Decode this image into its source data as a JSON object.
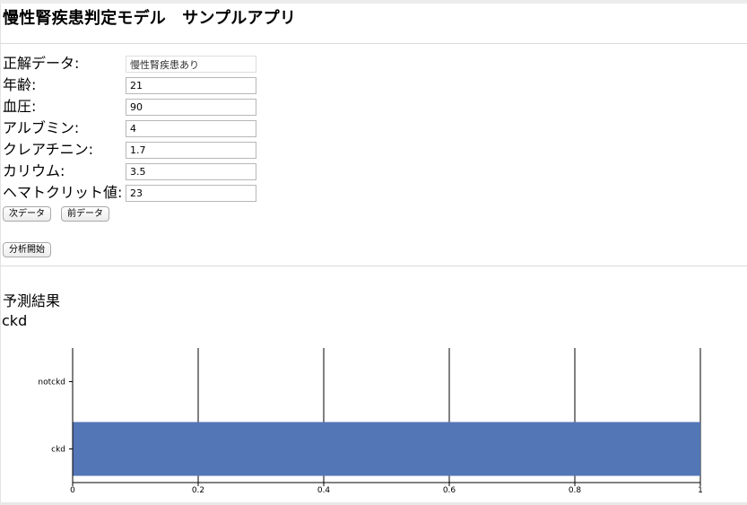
{
  "app": {
    "title": "慢性腎疾患判定モデル　サンプルアプリ"
  },
  "form": {
    "fields": [
      {
        "label": "正解データ:",
        "value": "慢性腎疾患あり"
      },
      {
        "label": "年齢:",
        "value": "21"
      },
      {
        "label": "血圧:",
        "value": "90"
      },
      {
        "label": "アルブミン:",
        "value": "4"
      },
      {
        "label": "クレアチニン:",
        "value": "1.7"
      },
      {
        "label": "カリウム:",
        "value": "3.5"
      },
      {
        "label": "ヘマトクリット値:",
        "value": "23"
      }
    ]
  },
  "buttons": {
    "next": "次データ",
    "prev": "前データ",
    "analyze": "分析開始"
  },
  "result": {
    "heading": "予測結果",
    "value": "ckd"
  },
  "colors": {
    "bar": "#5376b7"
  },
  "chart_data": {
    "type": "bar",
    "orientation": "horizontal",
    "categories": [
      "notckd",
      "ckd"
    ],
    "values": [
      0,
      1
    ],
    "xlim": [
      0,
      1
    ],
    "xticks": [
      "0",
      "0.2",
      "0.4",
      "0.6",
      "0.8",
      "1"
    ],
    "grid": true,
    "title": "",
    "xlabel": "",
    "ylabel": ""
  }
}
